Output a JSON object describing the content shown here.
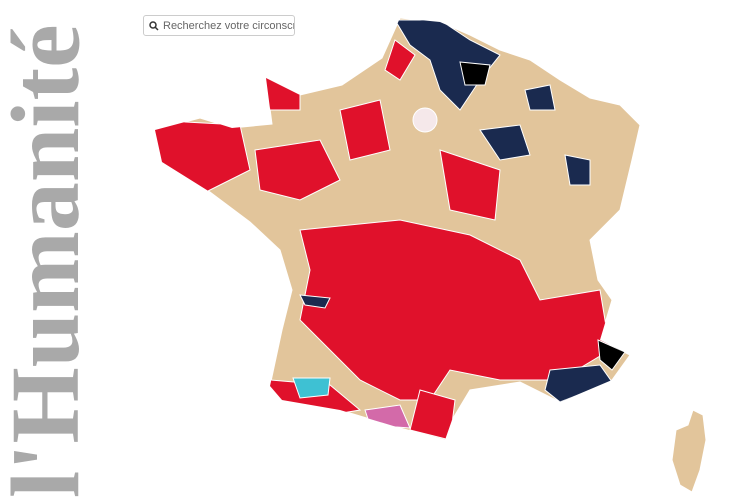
{
  "logo": "l'Humanité",
  "search": {
    "placeholder": "Recherchez votre circonscr"
  }
}
